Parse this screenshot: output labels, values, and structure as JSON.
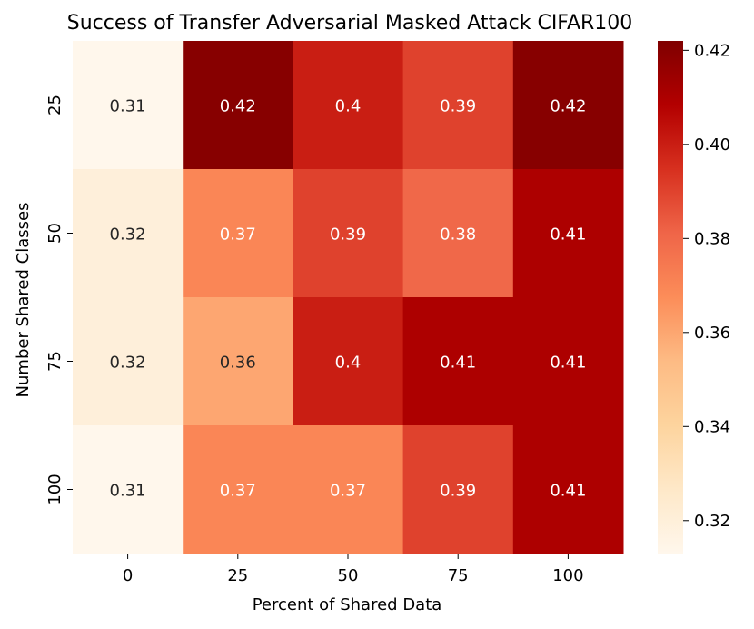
{
  "chart_data": {
    "type": "heatmap",
    "title": "Success of Transfer Adversarial Masked Attack CIFAR100",
    "xlabel": "Percent of Shared Data",
    "ylabel": "Number Shared Classes",
    "x_categories": [
      "0",
      "25",
      "50",
      "75",
      "100"
    ],
    "y_categories": [
      "25",
      "50",
      "75",
      "100"
    ],
    "values": [
      [
        0.31,
        0.42,
        0.4,
        0.39,
        0.42
      ],
      [
        0.32,
        0.37,
        0.39,
        0.38,
        0.41
      ],
      [
        0.32,
        0.36,
        0.4,
        0.41,
        0.41
      ],
      [
        0.31,
        0.37,
        0.37,
        0.39,
        0.41
      ]
    ],
    "annotations": [
      [
        "0.31",
        "0.42",
        "0.4",
        "0.39",
        "0.42"
      ],
      [
        "0.32",
        "0.37",
        "0.39",
        "0.38",
        "0.41"
      ],
      [
        "0.32",
        "0.36",
        "0.4",
        "0.41",
        "0.41"
      ],
      [
        "0.31",
        "0.37",
        "0.37",
        "0.39",
        "0.41"
      ]
    ],
    "colorbar": {
      "colormap": "OrRd",
      "vmin": 0.313,
      "vmax": 0.422,
      "ticks": [
        "0.32",
        "0.34",
        "0.36",
        "0.38",
        "0.40",
        "0.42"
      ]
    }
  }
}
